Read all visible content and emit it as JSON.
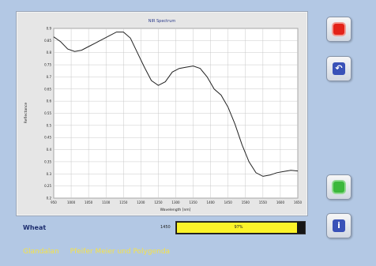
{
  "chart_data": {
    "type": "line",
    "title": "NIR Spectrum",
    "xlabel": "Wavelength [nm]",
    "ylabel": "Reflectance",
    "xlim": [
      950,
      1650
    ],
    "ylim": [
      0.2,
      0.9
    ],
    "x_ticks": [
      "950",
      "1000",
      "1050",
      "1100",
      "1150",
      "1200",
      "1250",
      "1300",
      "1350",
      "1400",
      "1450",
      "1500",
      "1550",
      "1600",
      "1650"
    ],
    "y_ticks": [
      "0.2",
      "0.25",
      "0.3",
      "0.35",
      "0.4",
      "0.45",
      "0.5",
      "0.55",
      "0.6",
      "0.65",
      "0.7",
      "0.75",
      "0.8",
      "0.85",
      "0.9"
    ],
    "grid": true,
    "series": [
      {
        "color": "#222222",
        "points": [
          [
            950,
            0.865
          ],
          [
            970,
            0.845
          ],
          [
            990,
            0.815
          ],
          [
            1010,
            0.805
          ],
          [
            1030,
            0.81
          ],
          [
            1050,
            0.825
          ],
          [
            1070,
            0.84
          ],
          [
            1090,
            0.855
          ],
          [
            1110,
            0.87
          ],
          [
            1130,
            0.885
          ],
          [
            1150,
            0.885
          ],
          [
            1170,
            0.86
          ],
          [
            1190,
            0.8
          ],
          [
            1210,
            0.74
          ],
          [
            1230,
            0.685
          ],
          [
            1250,
            0.665
          ],
          [
            1270,
            0.68
          ],
          [
            1290,
            0.72
          ],
          [
            1310,
            0.735
          ],
          [
            1330,
            0.74
          ],
          [
            1350,
            0.745
          ],
          [
            1370,
            0.735
          ],
          [
            1390,
            0.7
          ],
          [
            1410,
            0.65
          ],
          [
            1430,
            0.625
          ],
          [
            1450,
            0.575
          ],
          [
            1470,
            0.505
          ],
          [
            1490,
            0.42
          ],
          [
            1510,
            0.35
          ],
          [
            1530,
            0.305
          ],
          [
            1550,
            0.29
          ],
          [
            1570,
            0.295
          ],
          [
            1590,
            0.305
          ],
          [
            1610,
            0.31
          ],
          [
            1630,
            0.315
          ],
          [
            1650,
            0.312
          ]
        ]
      }
    ]
  },
  "buttons": {
    "record": "record-icon",
    "undo": "undo-icon",
    "green": "green-icon",
    "info": "info-icon"
  },
  "sample": {
    "name": "Wheat"
  },
  "progress": {
    "label": "1450",
    "value_text": "97%",
    "fraction": 0.97,
    "fill_color": "#fbf32a"
  },
  "footer": {
    "left": "Glandalan",
    "right": "Pfeifer Meier und Polygenda"
  },
  "colors": {
    "background": "#b3c8e4",
    "accent_text": "#f4e24a",
    "title_text": "#1c2d6e"
  }
}
